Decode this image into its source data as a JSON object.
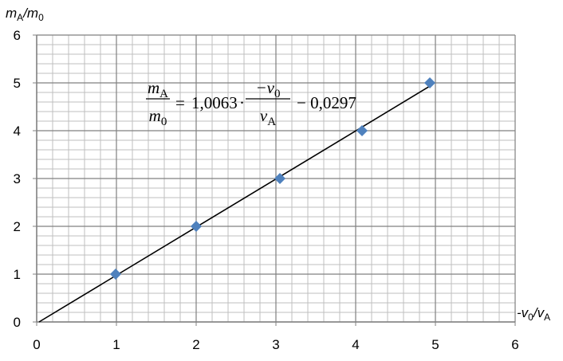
{
  "chart_data": {
    "type": "scatter",
    "xlabel": [
      "-v",
      "0",
      "/v",
      "A"
    ],
    "ylabel": [
      "m",
      "A",
      "/m",
      "0"
    ],
    "x": [
      0.99,
      2.0,
      3.05,
      4.08,
      4.93
    ],
    "y": [
      1,
      2,
      3,
      4,
      5
    ],
    "color": "#4f81bd",
    "xlim": [
      0,
      6
    ],
    "ylim": [
      0,
      6
    ],
    "xticks": [
      0,
      1,
      2,
      3,
      4,
      5,
      6
    ],
    "yticks": [
      0,
      1,
      2,
      3,
      4,
      5,
      6
    ],
    "grid": true,
    "minor_step": 0.2,
    "trendline": {
      "color": "#000000",
      "slope": {
        "value": 1.0063,
        "label": "1,0063"
      },
      "intercept": {
        "value": -0.0297,
        "label": "− 0,0297"
      }
    },
    "equation": {
      "lhs_num": [
        "m",
        "A"
      ],
      "lhs_den": [
        "m",
        "0"
      ],
      "equals": "=",
      "dot": "·",
      "rhs_num": [
        "−v",
        "0"
      ],
      "rhs_den": [
        "v",
        "A"
      ]
    }
  }
}
